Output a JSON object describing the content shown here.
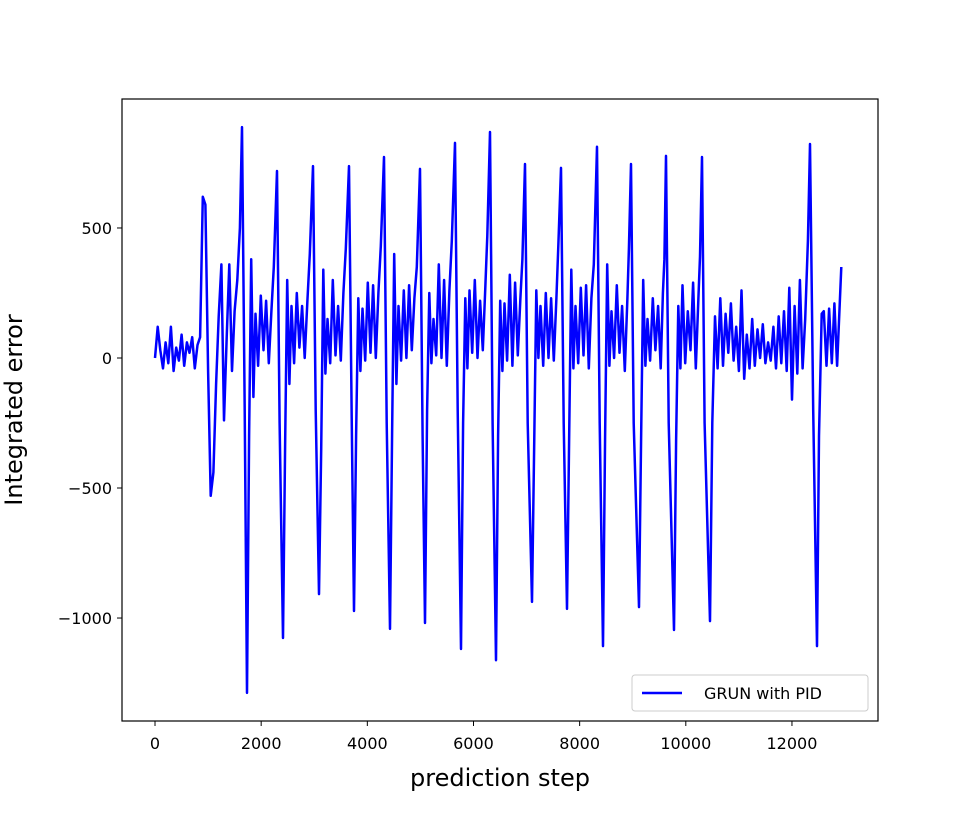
{
  "chart_data": {
    "type": "line",
    "xlabel": "prediction step",
    "ylabel": "Integrated error",
    "x": [
      0,
      50,
      100,
      150,
      200,
      250,
      300,
      350,
      400,
      450,
      500,
      550,
      600,
      650,
      700,
      750,
      800,
      850,
      900,
      950,
      1000,
      1050,
      1100,
      1150,
      1200,
      1250,
      1300,
      1350,
      1400,
      1450,
      1500,
      1550,
      1600,
      1639,
      1690,
      1733,
      1773,
      1813,
      1853,
      1893,
      1943,
      1993,
      2043,
      2093,
      2143,
      2193,
      2238,
      2298,
      2348,
      2411,
      2451,
      2491,
      2531,
      2571,
      2621,
      2671,
      2721,
      2771,
      2821,
      2871,
      2917,
      2977,
      3027,
      3090,
      3130,
      3170,
      3210,
      3250,
      3300,
      3350,
      3400,
      3450,
      3500,
      3550,
      3595,
      3655,
      3705,
      3749,
      3789,
      3829,
      3869,
      3909,
      3959,
      4009,
      4059,
      4109,
      4159,
      4209,
      4254,
      4314,
      4364,
      4427,
      4467,
      4507,
      4547,
      4587,
      4637,
      4687,
      4737,
      4787,
      4837,
      4887,
      4932,
      4992,
      5042,
      5087,
      5127,
      5167,
      5207,
      5247,
      5297,
      5347,
      5397,
      5447,
      5497,
      5547,
      5592,
      5652,
      5702,
      5765,
      5805,
      5845,
      5885,
      5925,
      5975,
      6025,
      6075,
      6125,
      6175,
      6225,
      6261,
      6311,
      6361,
      6424,
      6464,
      6504,
      6544,
      6584,
      6634,
      6684,
      6734,
      6784,
      6834,
      6884,
      6921,
      6971,
      7021,
      7103,
      7143,
      7183,
      7223,
      7263,
      7313,
      7363,
      7413,
      7463,
      7513,
      7563,
      7599,
      7649,
      7699,
      7762,
      7802,
      7842,
      7882,
      7922,
      7972,
      8022,
      8072,
      8122,
      8172,
      8222,
      8267,
      8327,
      8377,
      8440,
      8480,
      8520,
      8560,
      8600,
      8650,
      8700,
      8750,
      8800,
      8850,
      8900,
      8928,
      8968,
      9018,
      9118,
      9158,
      9198,
      9238,
      9278,
      9328,
      9378,
      9428,
      9478,
      9528,
      9568,
      9597,
      9627,
      9677,
      9778,
      9818,
      9858,
      9898,
      9938,
      9988,
      10038,
      10088,
      10138,
      10188,
      10238,
      10268,
      10305,
      10355,
      10456,
      10500,
      10550,
      10600,
      10650,
      10700,
      10750,
      10800,
      10850,
      10900,
      10950,
      11000,
      11050,
      11100,
      11150,
      11200,
      11250,
      11300,
      11350,
      11400,
      11450,
      11500,
      11550,
      11600,
      11650,
      11700,
      11750,
      11800,
      11850,
      11900,
      11950,
      12000,
      12050,
      12100,
      12150,
      12200,
      12250,
      12300,
      12340,
      12400,
      12472,
      12510,
      12560,
      12600,
      12650,
      12700,
      12750,
      12800,
      12850,
      12930
    ],
    "series": [
      {
        "name": "GRUN with PID",
        "color": "#0000ff",
        "values": [
          0,
          120,
          30,
          -40,
          60,
          -20,
          120,
          -50,
          40,
          -10,
          90,
          -30,
          60,
          20,
          80,
          -40,
          50,
          80,
          620,
          590,
          -50,
          -530,
          -440,
          -100,
          160,
          360,
          -240,
          80,
          360,
          -50,
          180,
          300,
          500,
          888,
          -200,
          -1288,
          -300,
          380,
          -150,
          170,
          -30,
          240,
          30,
          220,
          -20,
          180,
          350,
          719,
          -250,
          -1077,
          -340,
          300,
          -100,
          200,
          -20,
          250,
          40,
          200,
          0,
          220,
          400,
          738,
          -200,
          -908,
          -350,
          340,
          -60,
          150,
          -20,
          300,
          10,
          200,
          -10,
          250,
          420,
          738,
          -230,
          -973,
          -300,
          230,
          -50,
          190,
          -10,
          290,
          20,
          280,
          0,
          250,
          430,
          773,
          -250,
          -1042,
          -290,
          400,
          -100,
          200,
          -10,
          260,
          0,
          280,
          30,
          230,
          350,
          727,
          -300,
          -1019,
          -200,
          250,
          -20,
          150,
          10,
          360,
          0,
          300,
          -30,
          260,
          450,
          827,
          -200,
          -1119,
          -250,
          230,
          -40,
          260,
          20,
          300,
          0,
          220,
          30,
          280,
          470,
          869,
          -250,
          -1162,
          -300,
          220,
          -50,
          210,
          -10,
          320,
          -30,
          290,
          10,
          230,
          380,
          746,
          -250,
          -938,
          -330,
          260,
          0,
          200,
          -30,
          250,
          0,
          230,
          -10,
          230,
          440,
          731,
          -250,
          -965,
          -320,
          340,
          -40,
          200,
          -20,
          270,
          10,
          280,
          -40,
          230,
          360,
          812,
          -250,
          -1108,
          -300,
          360,
          -30,
          180,
          0,
          280,
          20,
          200,
          -50,
          230,
          420,
          746,
          -250,
          -958,
          -310,
          300,
          -30,
          150,
          -10,
          230,
          30,
          200,
          -40,
          250,
          380,
          777,
          -250,
          -1046,
          -320,
          200,
          -40,
          280,
          -20,
          180,
          30,
          290,
          -40,
          230,
          390,
          773,
          -250,
          -1012,
          -250,
          160,
          -40,
          230,
          -30,
          170,
          20,
          210,
          -10,
          120,
          -50,
          260,
          -80,
          90,
          -40,
          150,
          -30,
          110,
          0,
          130,
          -20,
          60,
          -10,
          120,
          -40,
          160,
          -20,
          180,
          -50,
          270,
          -160,
          200,
          -60,
          300,
          -40,
          150,
          450,
          823,
          -200,
          -1108,
          -300,
          170,
          180,
          -30,
          190,
          -20,
          210,
          -30,
          350
        ]
      }
    ],
    "xlim": [
      -622,
      13621
    ],
    "ylim": [
      -1396,
      996
    ],
    "xticks": [
      0,
      2000,
      4000,
      6000,
      8000,
      10000,
      12000
    ],
    "yticks": [
      {
        "value": -1000,
        "label": "−1000"
      },
      {
        "value": -500,
        "label": "−500"
      },
      0,
      500
    ],
    "legend": "lower right"
  }
}
